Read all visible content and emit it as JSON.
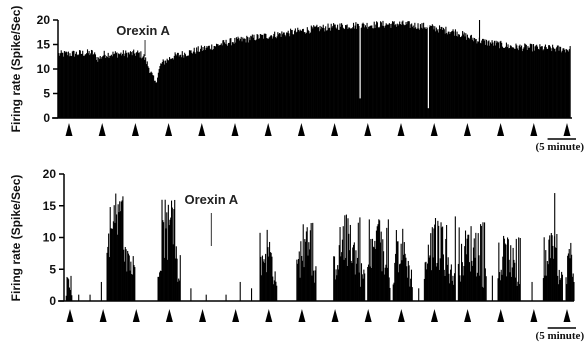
{
  "chart_data": [
    {
      "type": "bar",
      "ylabel": "Firing rate (Spike/Sec)",
      "ylim": [
        0,
        20
      ],
      "yticks": [
        0,
        5,
        10,
        15,
        20
      ],
      "annotation": {
        "label": "Orexin A",
        "x_min": 15.3
      },
      "scale_bar": {
        "label": "(5 minute)",
        "minutes": 5
      },
      "marker_count": 16,
      "x_range_minutes": [
        0,
        90
      ],
      "profile": [
        [
          0,
          13
        ],
        [
          6,
          13.3
        ],
        [
          7,
          12
        ],
        [
          8,
          13
        ],
        [
          14,
          13.2
        ],
        [
          15,
          12.6
        ],
        [
          16,
          10
        ],
        [
          17,
          7
        ],
        [
          18,
          11
        ],
        [
          20,
          12.5
        ],
        [
          25,
          14
        ],
        [
          30,
          15.5
        ],
        [
          35,
          16.5
        ],
        [
          40,
          17.3
        ],
        [
          45,
          18.2
        ],
        [
          50,
          18.8
        ],
        [
          55,
          19
        ],
        [
          60,
          19.2
        ],
        [
          65,
          18.6
        ],
        [
          70,
          17.5
        ],
        [
          72,
          16.5
        ],
        [
          75,
          15.5
        ],
        [
          80,
          14.5
        ],
        [
          85,
          14.3
        ],
        [
          90,
          14
        ]
      ],
      "spike": {
        "x": 74,
        "value": 20
      },
      "dips": [
        {
          "x": 65,
          "value": 2
        },
        {
          "x": 53,
          "value": 4
        }
      ]
    },
    {
      "type": "bar",
      "ylabel": "Firing rate (Spike/Sec)",
      "ylim": [
        0,
        20
      ],
      "yticks": [
        0,
        5,
        10,
        15,
        20
      ],
      "annotation": {
        "label": "Orexin A",
        "x_min": 26
      },
      "scale_bar": {
        "label": "(5 minute)",
        "minutes": 5
      },
      "marker_count": 16,
      "x_range_minutes": [
        0,
        90
      ],
      "bursts": [
        {
          "start": 0.3,
          "end": 1.3,
          "peak": 4
        },
        {
          "start": 7.5,
          "end": 12.5,
          "peak": 17
        },
        {
          "start": 16.5,
          "end": 20.5,
          "peak": 17
        },
        {
          "start": 34.5,
          "end": 37.5,
          "peak": 12
        },
        {
          "start": 41,
          "end": 44.5,
          "peak": 12.5
        },
        {
          "start": 47.5,
          "end": 53,
          "peak": 14
        },
        {
          "start": 53.5,
          "end": 57.5,
          "peak": 13
        },
        {
          "start": 58,
          "end": 61.5,
          "peak": 12
        },
        {
          "start": 63.5,
          "end": 69,
          "peak": 13.5
        },
        {
          "start": 69.5,
          "end": 74.5,
          "peak": 12.5
        },
        {
          "start": 76.5,
          "end": 80.5,
          "peak": 10.5
        },
        {
          "start": 84.5,
          "end": 88,
          "peak": 11
        },
        {
          "start": 88.5,
          "end": 90,
          "peak": 10.5
        }
      ],
      "spikes": [
        {
          "x": 2.5,
          "value": 1
        },
        {
          "x": 4.5,
          "value": 1
        },
        {
          "x": 6.5,
          "value": 3
        },
        {
          "x": 22.3,
          "value": 2
        },
        {
          "x": 25,
          "value": 1
        },
        {
          "x": 28.5,
          "value": 1
        },
        {
          "x": 31,
          "value": 3
        },
        {
          "x": 33,
          "value": 2
        },
        {
          "x": 62.5,
          "value": 2
        },
        {
          "x": 75.5,
          "value": 4
        },
        {
          "x": 82.5,
          "value": 3
        },
        {
          "x": 86.5,
          "value": 17
        }
      ]
    }
  ]
}
